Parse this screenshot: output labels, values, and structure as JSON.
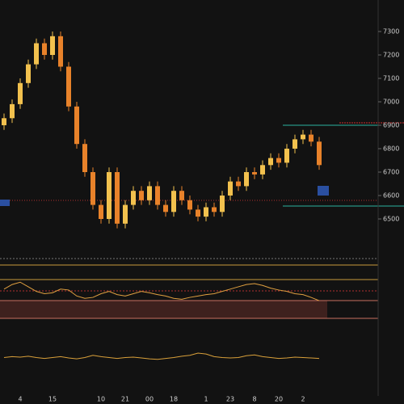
{
  "chart_data": {
    "type": "candlestick",
    "categories": [
      null,
      null,
      "4",
      null,
      null,
      null,
      "15",
      null,
      null,
      null,
      null,
      null,
      "10",
      null,
      null,
      "21",
      null,
      null,
      "00",
      null,
      null,
      "18",
      null,
      null,
      null,
      "1",
      null,
      null,
      "23",
      null,
      null,
      "8",
      null,
      null,
      "20",
      null,
      null,
      "2",
      null,
      null
    ],
    "open": [
      6900,
      6930,
      6990,
      7080,
      7160,
      7250,
      7200,
      7280,
      7150,
      6980,
      6820,
      6700,
      6560,
      6500,
      6700,
      6480,
      6560,
      6620,
      6580,
      6640,
      6560,
      6530,
      6620,
      6580,
      6540,
      6510,
      6550,
      6530,
      6600,
      6660,
      6640,
      6700,
      6690,
      6730,
      6760,
      6740,
      6800,
      6840,
      6860,
      6830
    ],
    "high": [
      6950,
      7010,
      7100,
      7180,
      7270,
      7270,
      7300,
      7300,
      7170,
      7000,
      6840,
      6720,
      6580,
      6720,
      6720,
      6580,
      6640,
      6640,
      6660,
      6660,
      6580,
      6640,
      6640,
      6600,
      6560,
      6570,
      6570,
      6620,
      6680,
      6680,
      6720,
      6720,
      6750,
      6780,
      6780,
      6820,
      6860,
      6880,
      6880,
      6850
    ],
    "low": [
      6880,
      6910,
      6970,
      7060,
      7140,
      7180,
      7180,
      7130,
      6960,
      6800,
      6680,
      6540,
      6480,
      6480,
      6460,
      6460,
      6540,
      6560,
      6560,
      6540,
      6510,
      6510,
      6560,
      6520,
      6490,
      6490,
      6510,
      6510,
      6580,
      6620,
      6620,
      6670,
      6670,
      6710,
      6720,
      6720,
      6780,
      6820,
      6810,
      6710
    ],
    "close": [
      6930,
      6990,
      7080,
      7160,
      7250,
      7200,
      7280,
      7150,
      6980,
      6820,
      6700,
      6560,
      6500,
      6700,
      6480,
      6560,
      6620,
      6580,
      6640,
      6560,
      6530,
      6620,
      6580,
      6540,
      6510,
      6550,
      6530,
      6600,
      6660,
      6640,
      6700,
      6690,
      6730,
      6760,
      6740,
      6800,
      6840,
      6860,
      6830,
      6730
    ],
    "up_color": "#f2c14e",
    "down_color": "#e8822a",
    "ylim": [
      6400,
      7400
    ],
    "yticks": [
      6500,
      6600,
      6700,
      6800,
      6900,
      7000,
      7100,
      7200,
      7300
    ],
    "indicators": [
      {
        "color": "#e0a040",
        "ylim": [
          0,
          100
        ],
        "values": [
          60,
          70,
          75,
          65,
          55,
          50,
          52,
          60,
          58,
          45,
          40,
          42,
          50,
          55,
          48,
          45,
          50,
          55,
          52,
          48,
          45,
          40,
          38,
          42,
          45,
          48,
          50,
          55,
          60,
          65,
          70,
          72,
          68,
          62,
          58,
          55,
          50,
          48,
          42,
          35
        ]
      },
      {
        "color": "#d9a03a",
        "ylim": [
          0,
          100
        ],
        "values": [
          50,
          52,
          51,
          53,
          50,
          48,
          50,
          52,
          49,
          47,
          50,
          55,
          52,
          50,
          48,
          50,
          51,
          49,
          47,
          46,
          48,
          50,
          53,
          55,
          60,
          58,
          52,
          50,
          49,
          50,
          54,
          56,
          52,
          50,
          48,
          49,
          51,
          50,
          49,
          48
        ]
      }
    ]
  }
}
